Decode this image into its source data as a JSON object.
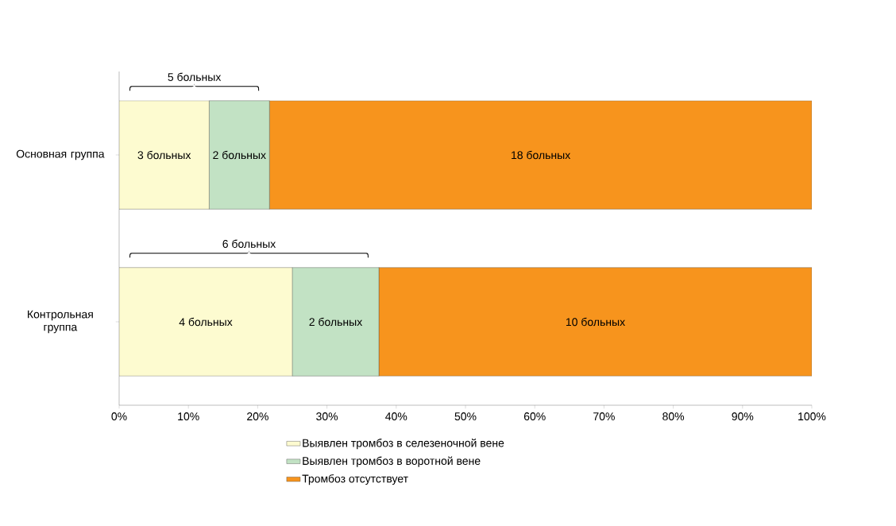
{
  "chart_data": {
    "type": "bar",
    "orientation": "horizontal",
    "stacked": true,
    "categories": [
      "Основная группа",
      "Контрольная группа"
    ],
    "series": [
      {
        "name": "Выявлен тромбоз в селезеночной вене",
        "color": "#fdfbd0",
        "values": [
          13.0,
          25.0
        ]
      },
      {
        "name": "Выявлен тромбоз в воротной вене",
        "color": "#c2e2c4",
        "values": [
          8.7,
          12.5
        ]
      },
      {
        "name": "Тромбоз отсутствует",
        "color": "#f7941d",
        "values": [
          78.3,
          62.5
        ]
      }
    ],
    "xlim": [
      0,
      100
    ],
    "xticks": [
      {
        "value": 0,
        "label": "0%"
      },
      {
        "value": 10,
        "label": "10%"
      },
      {
        "value": 20,
        "label": "20%"
      },
      {
        "value": 30,
        "label": "30%"
      },
      {
        "value": 40,
        "label": "40%"
      },
      {
        "value": 50,
        "label": "50%"
      },
      {
        "value": 60,
        "label": "60%"
      },
      {
        "value": 70,
        "label": "70%"
      },
      {
        "value": 80,
        "label": "80%"
      },
      {
        "value": 90,
        "label": "90%"
      },
      {
        "value": 100,
        "label": "100%"
      }
    ],
    "annotations": [
      "5 больных",
      "6 больных",
      "3 больных",
      "2 больных",
      "18 больных",
      "4 больных",
      "2 больных",
      "10 больных"
    ],
    "legend": "bottom",
    "grid": false
  }
}
